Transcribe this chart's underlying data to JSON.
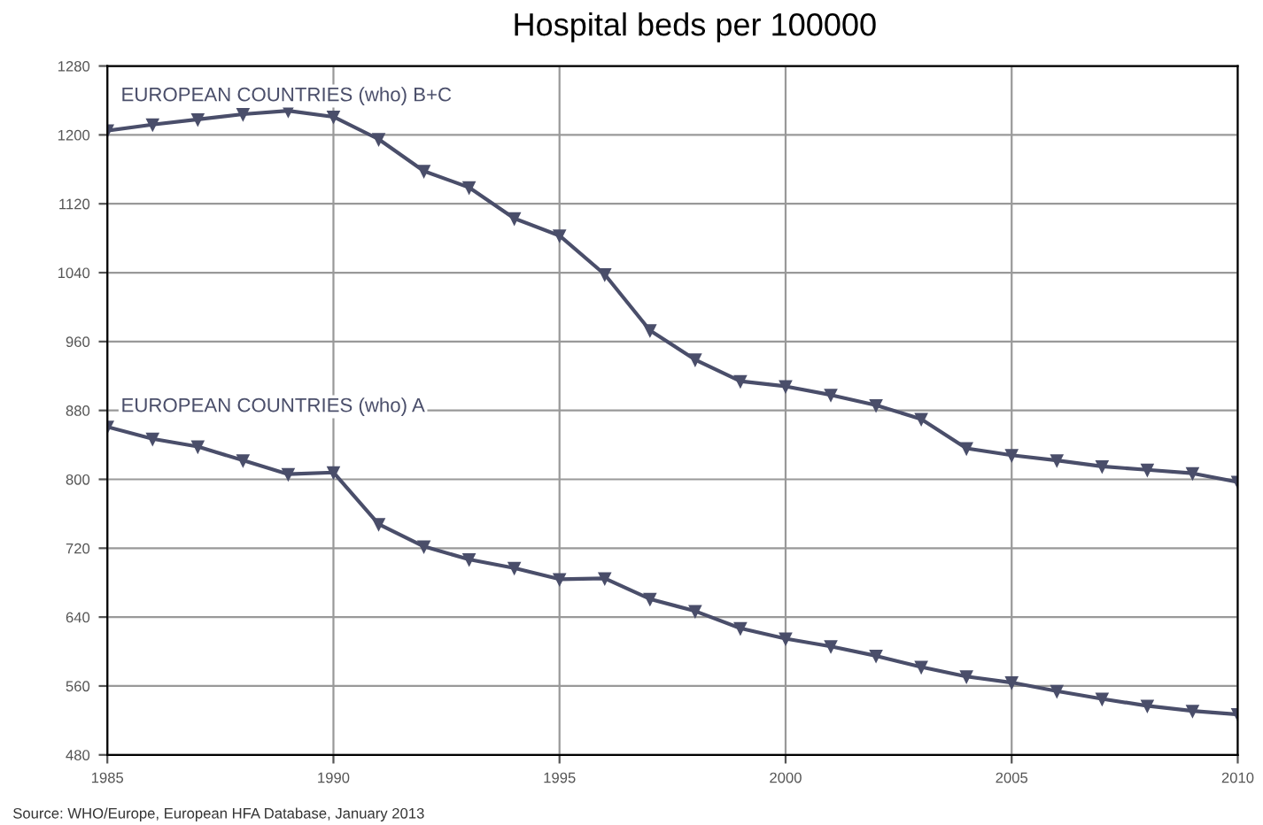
{
  "chart_data": {
    "type": "line",
    "title": "Hospital beds per 100000",
    "x": [
      1985,
      1986,
      1987,
      1988,
      1989,
      1990,
      1991,
      1992,
      1993,
      1994,
      1995,
      1996,
      1997,
      1998,
      1999,
      2000,
      2001,
      2002,
      2003,
      2004,
      2005,
      2006,
      2007,
      2008,
      2009,
      2010
    ],
    "series": [
      {
        "name": "EUROPEAN COUNTRIES (who) B+C",
        "color": "#4a4e6a",
        "values": [
          1205,
          1212,
          1218,
          1224,
          1228,
          1221,
          1195,
          1158,
          1139,
          1103,
          1083,
          1038,
          973,
          939,
          914,
          908,
          898,
          886,
          870,
          836,
          828,
          822,
          815,
          811,
          807,
          797
        ]
      },
      {
        "name": "EUROPEAN COUNTRIES (who) A",
        "color": "#4a4e6a",
        "values": [
          861,
          847,
          838,
          822,
          806,
          808,
          748,
          722,
          707,
          697,
          684,
          685,
          661,
          647,
          627,
          615,
          606,
          595,
          582,
          571,
          564,
          554,
          545,
          537,
          531,
          527
        ]
      }
    ],
    "xlim": [
      1985,
      2010
    ],
    "xticks": [
      1985,
      1990,
      1995,
      2000,
      2005,
      2010
    ],
    "ylim": [
      480,
      1280
    ],
    "yticks": [
      480,
      560,
      640,
      720,
      800,
      880,
      960,
      1040,
      1120,
      1200,
      1280
    ],
    "grid": true,
    "marker": "triangle",
    "line_style": "solid",
    "legend": false,
    "annotations": [
      "Source: WHO/Europe, European HFA Database, January 2013"
    ]
  }
}
